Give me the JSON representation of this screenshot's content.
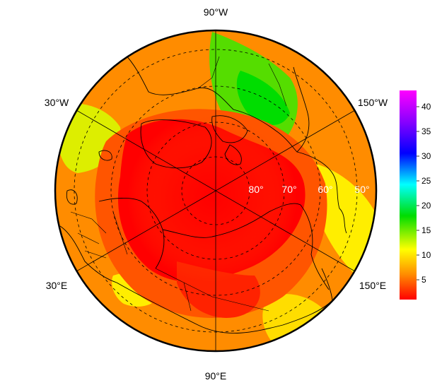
{
  "map": {
    "projection": "north-polar-stereographic",
    "center": "north-pole",
    "graticule_style": "dashed",
    "longitude_labels": {
      "top": "90°W",
      "bottom": "90°E",
      "upper_left": "30°W",
      "upper_right": "150°W",
      "lower_left": "30°E",
      "lower_right": "150°E"
    },
    "latitude_labels": [
      "80°",
      "70°",
      "60°",
      "50°"
    ]
  },
  "colorbar": {
    "ticks": [
      "5",
      "10",
      "15",
      "20",
      "25",
      "30",
      "35",
      "40"
    ],
    "range": [
      1,
      43
    ],
    "colors": {
      "low": "#ff0000",
      "orange": "#ff8c00",
      "yellow": "#ffff00",
      "green": "#00dd00",
      "cyan": "#00ffff",
      "blue": "#0000ff",
      "purple": "#8800ff",
      "high": "#ff00ff"
    }
  }
}
